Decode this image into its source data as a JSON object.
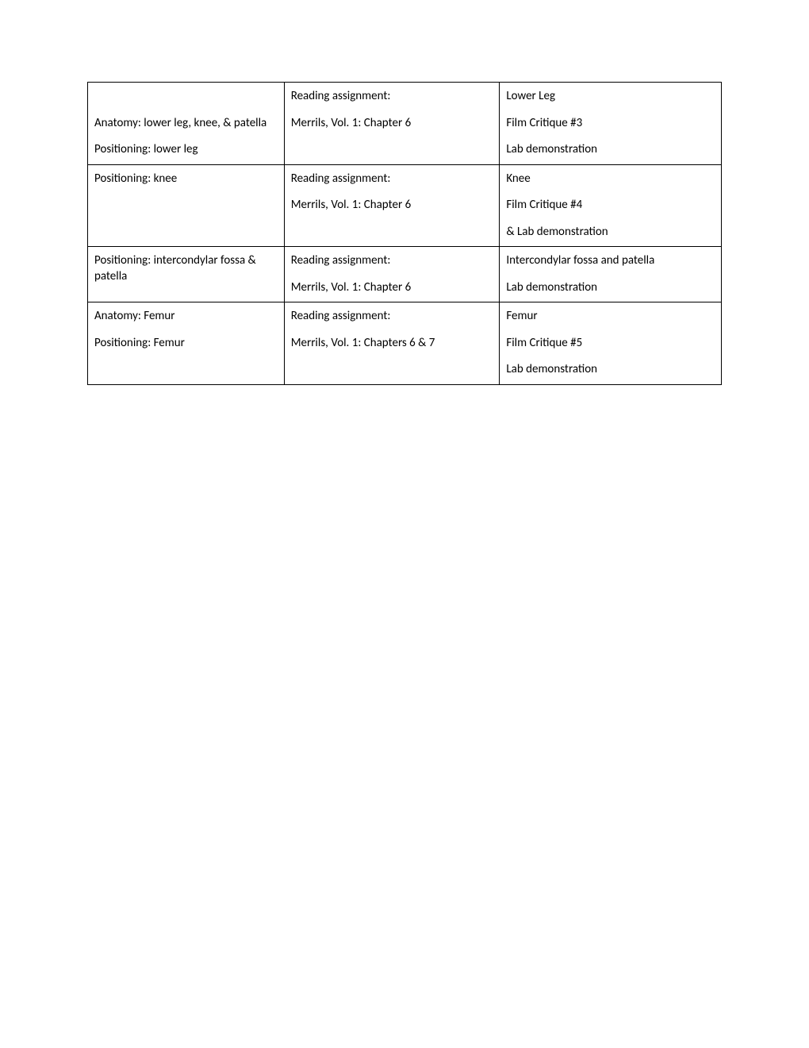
{
  "table": {
    "border_color": "#000000",
    "text_color": "#000000",
    "background_color": "#ffffff",
    "font_size": 15,
    "rows": [
      {
        "col1": {
          "lines": [
            "",
            "Anatomy: lower leg, knee, & patella",
            "Positioning:  lower leg"
          ]
        },
        "col2": {
          "lines": [
            "Reading assignment:",
            "Merrils, Vol. 1: Chapter 6"
          ]
        },
        "col3": {
          "lines": [
            "Lower Leg",
            "Film Critique #3",
            "Lab demonstration"
          ]
        }
      },
      {
        "col1": {
          "lines": [
            "Positioning: knee"
          ]
        },
        "col2": {
          "lines": [
            "Reading assignment:",
            "Merrils, Vol. 1: Chapter 6"
          ]
        },
        "col3": {
          "lines": [
            "Knee",
            "Film Critique #4",
            "& Lab demonstration"
          ]
        }
      },
      {
        "col1": {
          "lines": [
            "Positioning: intercondylar fossa & patella"
          ]
        },
        "col2": {
          "lines": [
            "Reading assignment:",
            "Merrils, Vol. 1: Chapter 6"
          ]
        },
        "col3": {
          "lines": [
            "Intercondylar fossa and patella",
            "Lab demonstration"
          ]
        }
      },
      {
        "col1": {
          "lines": [
            "Anatomy: Femur",
            "Positioning: Femur"
          ]
        },
        "col2": {
          "lines": [
            "Reading assignment:",
            "Merrils, Vol. 1: Chapters 6 & 7"
          ]
        },
        "col3": {
          "lines": [
            "Femur",
            "Film Critique #5",
            "Lab demonstration"
          ]
        }
      }
    ]
  }
}
